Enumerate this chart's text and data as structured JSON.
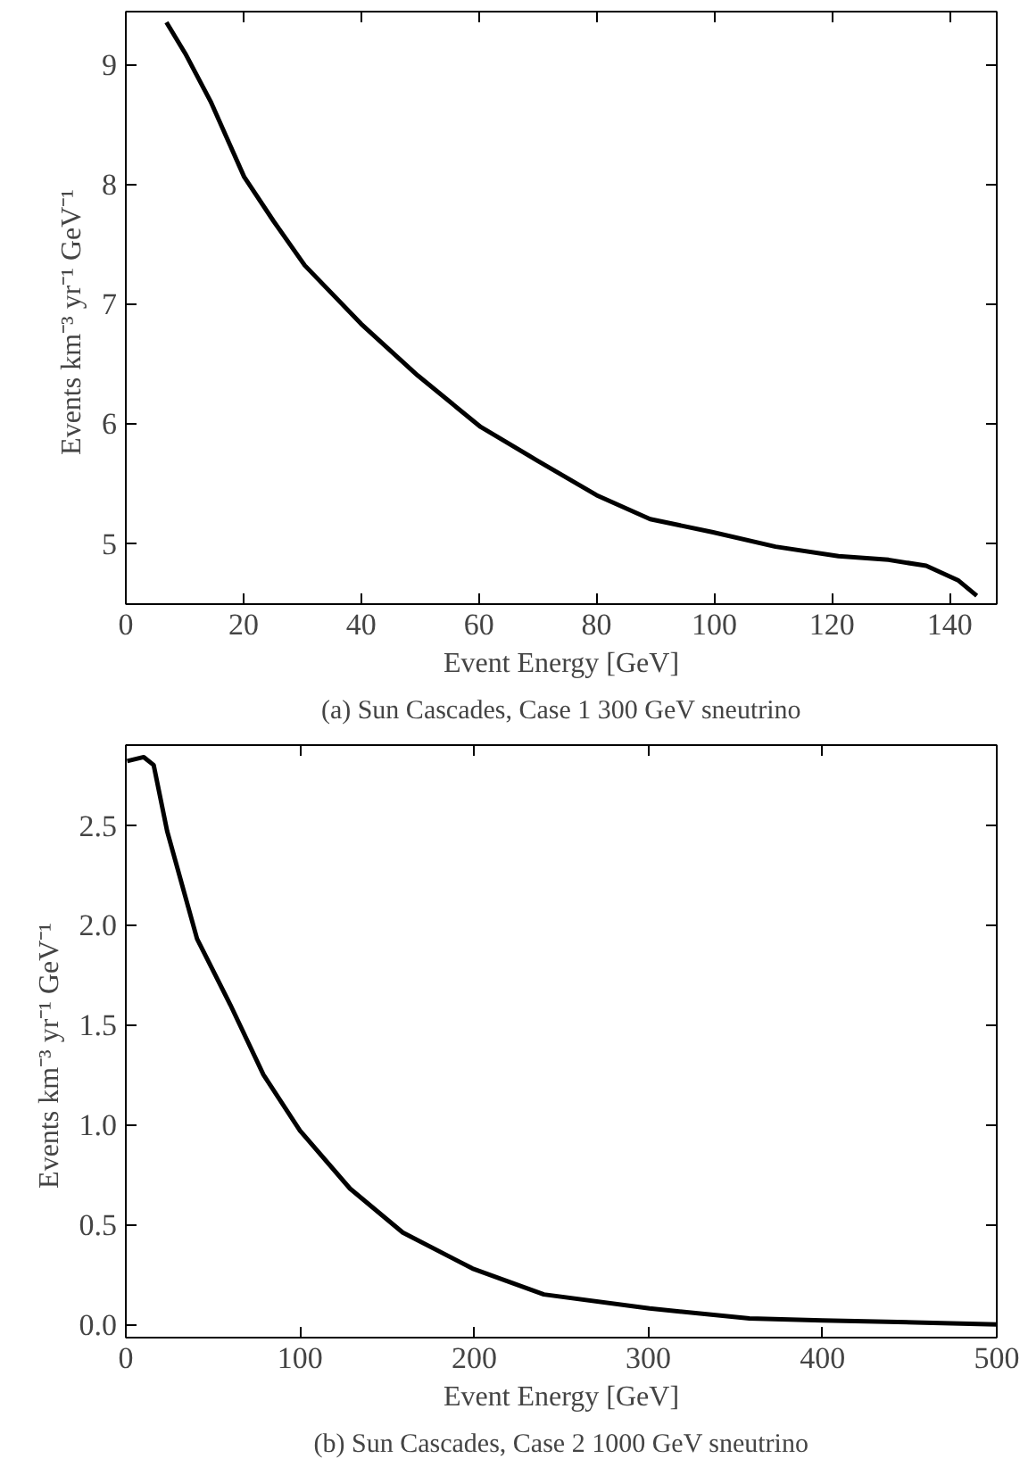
{
  "chart_data": [
    {
      "type": "line",
      "title": "(a) Sun Cascades, Case 1 300 GeV sneutrino",
      "xlabel": "Event Energy [GeV]",
      "ylabel": "Events km⁻³   yr⁻¹   GeV⁻¹",
      "x": [
        6.9,
        10.1,
        14.4,
        20.1,
        25.1,
        30.4,
        40.0,
        49.6,
        60.3,
        69.9,
        80.0,
        89.1,
        99.8,
        110.4,
        121.1,
        129.6,
        136.0,
        141.4,
        144.6
      ],
      "series": [
        {
          "color": "#000000",
          "values": [
            9.35,
            9.09,
            8.69,
            8.06,
            7.69,
            7.32,
            6.83,
            6.4,
            5.97,
            5.69,
            5.4,
            5.2,
            5.09,
            4.97,
            4.89,
            4.86,
            4.81,
            4.69,
            4.56
          ]
        }
      ],
      "xlim": [
        0,
        148
      ],
      "ylim": [
        4.49,
        9.44
      ],
      "xticks": [
        0,
        20,
        40,
        60,
        80,
        100,
        120,
        140
      ],
      "yticks": [
        5,
        6,
        7,
        8,
        9
      ],
      "grid": false,
      "marker": "none",
      "line_style": "solid"
    },
    {
      "type": "line",
      "title": "(b) Sun Cascades, Case 2 1000 GeV sneutrino",
      "xlabel": "Event Energy [GeV]",
      "ylabel": "Events km⁻³   yr⁻¹   GeV⁻¹",
      "x": [
        0.8,
        10.3,
        16,
        23.7,
        40.9,
        60,
        79,
        100,
        128.7,
        159,
        199,
        240,
        300.6,
        358,
        400,
        453,
        500
      ],
      "series": [
        {
          "color": "#000000",
          "values": [
            2.82,
            2.84,
            2.8,
            2.47,
            1.93,
            1.6,
            1.25,
            0.97,
            0.68,
            0.46,
            0.28,
            0.15,
            0.08,
            0.03,
            0.02,
            0.01,
            0.0
          ]
        }
      ],
      "xlim": [
        0,
        500
      ],
      "ylim": [
        -0.066,
        2.9
      ],
      "xticks": [
        0,
        100,
        200,
        300,
        400,
        500
      ],
      "yticks": [
        {
          "value": 0,
          "label": "0.0"
        },
        0.5,
        {
          "value": 1,
          "label": "1.0"
        },
        1.5,
        {
          "value": 2,
          "label": "2.0"
        },
        2.5
      ],
      "grid": false,
      "marker": "none",
      "line_style": "solid"
    }
  ]
}
